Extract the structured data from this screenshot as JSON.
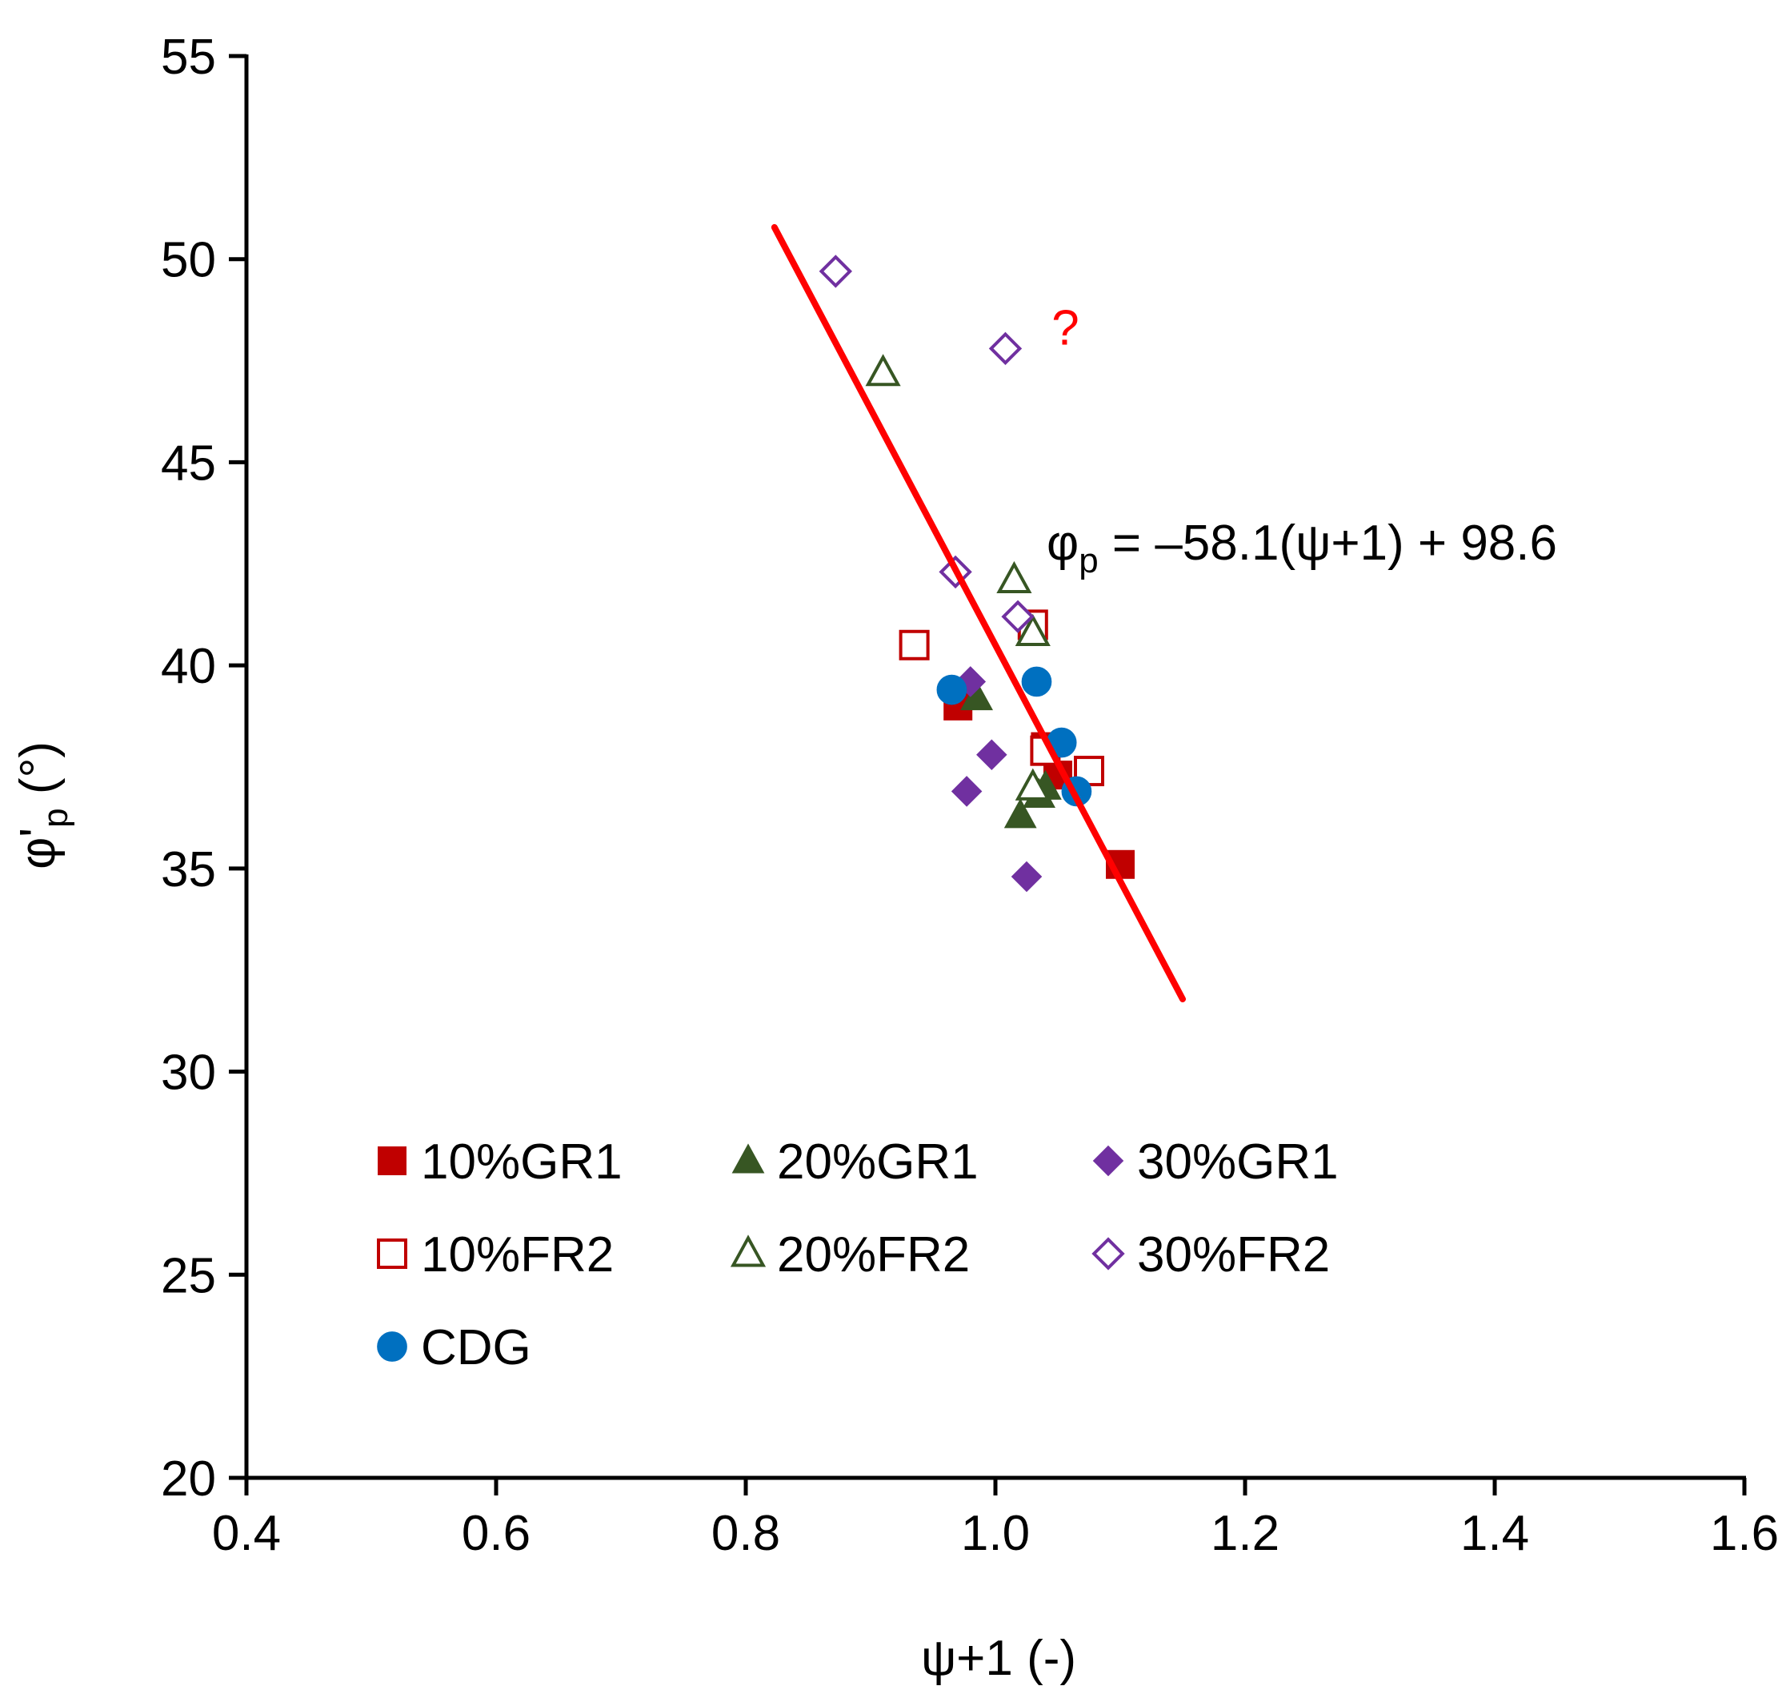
{
  "chart_data": {
    "type": "scatter",
    "title": "",
    "xlabel": "ψ+1 (-)",
    "ylabel": {
      "base": "φ'",
      "sub": "p",
      "unit": " (°)"
    },
    "xlim": [
      0.4,
      1.6
    ],
    "ylim": [
      20,
      55
    ],
    "xticks": [
      "0.4",
      "0.6",
      "0.8",
      "1.0",
      "1.2",
      "1.4",
      "1.6"
    ],
    "yticks": [
      "20",
      "25",
      "30",
      "35",
      "40",
      "45",
      "50",
      "55"
    ],
    "grid": false,
    "legend_position": "lower-left, inside plot",
    "series": [
      {
        "name": "10%GR1",
        "marker": "square",
        "filled": true,
        "color": "#C00000",
        "points": [
          [
            0.97,
            39.0
          ],
          [
            1.04,
            38.0
          ],
          [
            1.05,
            37.3
          ],
          [
            1.1,
            35.1
          ]
        ]
      },
      {
        "name": "20%GR1",
        "marker": "triangle",
        "filled": true,
        "color": "#375623",
        "points": [
          [
            0.985,
            39.2
          ],
          [
            1.02,
            36.3
          ],
          [
            1.035,
            36.8
          ],
          [
            1.04,
            37.0
          ]
        ]
      },
      {
        "name": "30%GR1",
        "marker": "diamond",
        "filled": true,
        "color": "#7030A0",
        "points": [
          [
            0.98,
            39.6
          ],
          [
            0.997,
            37.8
          ],
          [
            0.977,
            36.9
          ],
          [
            1.025,
            34.8
          ]
        ]
      },
      {
        "name": "10%FR2",
        "marker": "square",
        "filled": false,
        "color": "#C00000",
        "points": [
          [
            0.935,
            40.5
          ],
          [
            1.03,
            41.0
          ],
          [
            1.04,
            37.9
          ],
          [
            1.075,
            37.4
          ]
        ]
      },
      {
        "name": "20%FR2",
        "marker": "triangle",
        "filled": false,
        "color": "#375623",
        "points": [
          [
            0.91,
            47.2
          ],
          [
            1.015,
            42.1
          ],
          [
            1.03,
            40.8
          ],
          [
            1.03,
            37.0
          ]
        ]
      },
      {
        "name": "30%FR2",
        "marker": "diamond",
        "filled": false,
        "color": "#7030A0",
        "points": [
          [
            0.872,
            49.7
          ],
          [
            1.008,
            47.8
          ],
          [
            0.968,
            42.3
          ],
          [
            1.018,
            41.2
          ]
        ]
      },
      {
        "name": "CDG",
        "marker": "circle",
        "filled": true,
        "color": "#0070C0",
        "points": [
          [
            0.965,
            39.4
          ],
          [
            1.033,
            39.6
          ],
          [
            1.053,
            38.1
          ],
          [
            1.065,
            36.9
          ]
        ]
      }
    ],
    "fit_line": {
      "color": "#FF0000",
      "x": [
        0.823,
        1.15
      ],
      "slope": -58.1,
      "intercept": 98.6
    },
    "annotations": [
      {
        "text": "?",
        "color": "#FF0000",
        "x": 1.045,
        "y": 47.9
      }
    ],
    "equation": {
      "phi": "φ",
      "sub": "p",
      "rest": " = –58.1(ψ+1) + 98.6",
      "x": 1.45,
      "y": 43.0
    }
  }
}
